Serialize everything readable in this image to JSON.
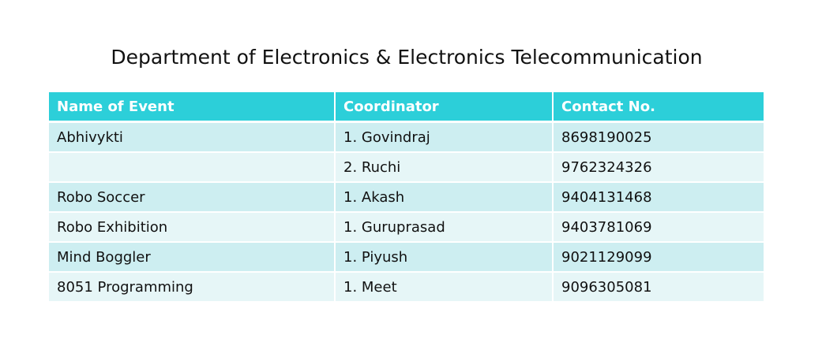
{
  "title": "Department of Electronics & Electronics Telecommunication",
  "table": {
    "headers": [
      "Name of Event",
      "Coordinator",
      "Contact No."
    ],
    "rows": [
      [
        "Abhivykti",
        "1. Govindraj",
        "8698190025"
      ],
      [
        "",
        "2. Ruchi",
        "9762324326"
      ],
      [
        "Robo Soccer",
        "1. Akash",
        "9404131468"
      ],
      [
        "Robo Exhibition",
        "1. Guruprasad",
        "9403781069"
      ],
      [
        "Mind Boggler",
        "1. Piyush",
        "9021129099"
      ],
      [
        "8051 Programming",
        "1. Meet",
        "9096305081"
      ]
    ]
  },
  "colors": {
    "header_bg": "#2ccfd9",
    "row_odd_bg": "#cdeef1",
    "row_even_bg": "#e6f6f7"
  }
}
